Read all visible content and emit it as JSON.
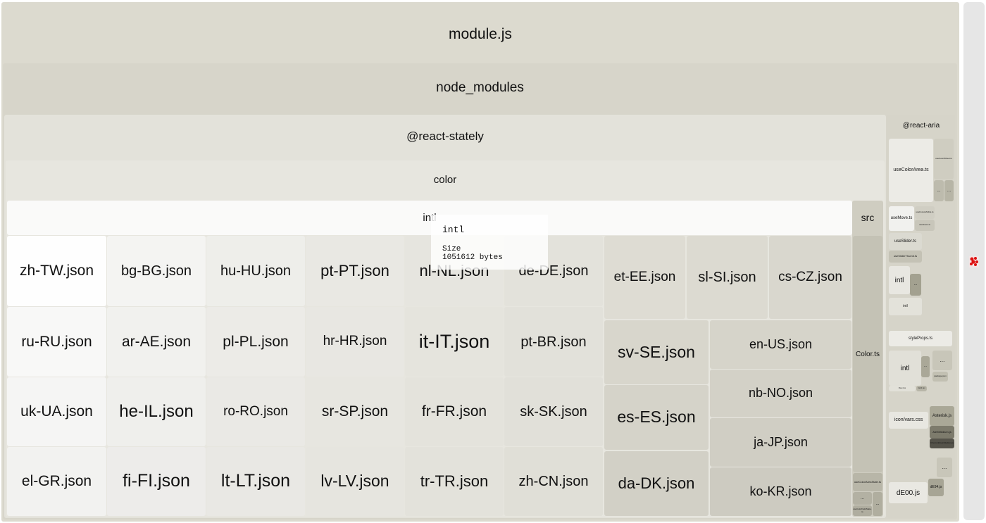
{
  "treemap": {
    "root": "module.js",
    "node_modules": "node_modules",
    "react_stately": "@react-stately",
    "color": "color",
    "intl": "intl",
    "src": "src",
    "src_files": [
      "Color.ts",
      "useColorAreaState.ts",
      "useColorFieldState.ts",
      "...",
      "..."
    ],
    "intl_files": [
      "zh-TW.json",
      "bg-BG.json",
      "hu-HU.json",
      "pt-PT.json",
      "nl-NL.json",
      "de-DE.json",
      "ru-RU.json",
      "ar-AE.json",
      "pl-PL.json",
      "hr-HR.json",
      "it-IT.json",
      "pt-BR.json",
      "uk-UA.json",
      "he-IL.json",
      "ro-RO.json",
      "sr-SP.json",
      "fr-FR.json",
      "sk-SK.json",
      "el-GR.json",
      "fi-FI.json",
      "lt-LT.json",
      "lv-LV.json",
      "tr-TR.json",
      "zh-CN.json",
      "et-EE.json",
      "sl-SI.json",
      "cs-CZ.json",
      "sv-SE.json",
      "es-ES.json",
      "da-DK.json",
      "en-US.json",
      "nb-NO.json",
      "ja-JP.json",
      "ko-KR.json"
    ],
    "react_aria": "@react-aria",
    "react_aria_files": [
      "useColorArea.ts",
      "useColorWheel.ts",
      "useMove.ts",
      "useFocusVisible.ts",
      "useHover.ts",
      "useSlider.ts",
      "useSliderThumb.ts",
      "intl",
      "intl",
      "styleProps.ts",
      "intl",
      "Flex.tsx",
      "Grid.tsx",
      "package.json",
      "icon/vars.css",
      "Asterisk.js",
      "AlertMedium.js",
      "ChevronDownMedium.js",
      "dE00.js",
      "dE94.js",
      "...",
      "..."
    ]
  },
  "tooltip": {
    "title": "intl",
    "size_label": "Size",
    "size_value": "1051612 bytes"
  },
  "colors": {
    "light": "#fefefe",
    "base": "#dcdad0",
    "dark": "#55534a"
  }
}
